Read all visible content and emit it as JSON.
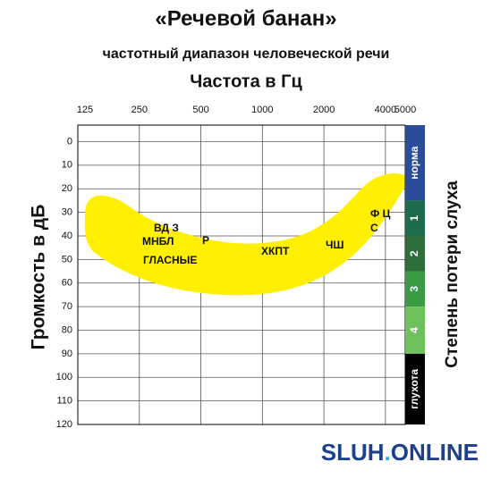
{
  "chart_data": {
    "type": "audiogram",
    "title": "«Речевой банан»",
    "subtitle": "частотный диапазон человеческой речи",
    "x_label": "Частота в Гц",
    "y_label": "Громкость в дБ",
    "y2_label": "Степень потери слуха",
    "log_x": true,
    "y_inverted": true,
    "grid": true,
    "xlim": [
      125,
      5000
    ],
    "xticks": [
      125,
      250,
      500,
      1000,
      2000,
      4000,
      5000
    ],
    "ylim": [
      -7,
      120
    ],
    "yticks": [
      0,
      10,
      20,
      30,
      40,
      50,
      60,
      70,
      80,
      90,
      100,
      110,
      120
    ],
    "hearing_levels": [
      {
        "label": "норма",
        "from": -7,
        "to": 25,
        "color": "#2b4c9b"
      },
      {
        "label": "1",
        "from": 25,
        "to": 40,
        "color": "#1f6b4e"
      },
      {
        "label": "2",
        "from": 40,
        "to": 55,
        "color": "#2f6e3b"
      },
      {
        "label": "3",
        "from": 55,
        "to": 70,
        "color": "#3a9a45"
      },
      {
        "label": "4",
        "from": 70,
        "to": 90,
        "color": "#6fc25b"
      },
      {
        "label": "глухота",
        "from": 90,
        "to": 120,
        "color": "#000000"
      }
    ],
    "annotations": [
      "ВД З",
      "МНБЛ",
      "Р",
      "ГЛАСНЫЕ",
      "ХКПТ",
      "ЧШ",
      "Ф Ц",
      "С"
    ],
    "brand": [
      "SLUH",
      ".",
      "ONLINE"
    ]
  }
}
